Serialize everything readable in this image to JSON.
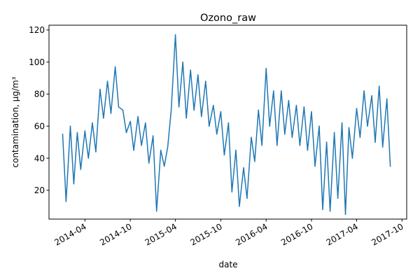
{
  "chart_data": {
    "type": "line",
    "title": "Ozono_raw",
    "xlabel": "date",
    "ylabel": "contamination, µg/m³",
    "x_ticks": [
      "2014-04",
      "2014-10",
      "2015-04",
      "2015-10",
      "2016-04",
      "2016-10",
      "2017-04",
      "2017-10"
    ],
    "y_ticks": [
      20,
      40,
      60,
      80,
      100,
      120
    ],
    "xlim": [
      "2013-11-07",
      "2017-10-20"
    ],
    "ylim": [
      2,
      123
    ],
    "grid": false,
    "legend": "none",
    "series": [
      {
        "color": "#1f77b4",
        "x": [
          "2014-01-01",
          "2014-01-15",
          "2014-02-01",
          "2014-02-15",
          "2014-03-01",
          "2014-03-15",
          "2014-04-01",
          "2014-04-15",
          "2014-05-01",
          "2014-05-15",
          "2014-06-01",
          "2014-06-15",
          "2014-07-01",
          "2014-07-15",
          "2014-08-01",
          "2014-08-15",
          "2014-09-01",
          "2014-09-15",
          "2014-10-01",
          "2014-10-15",
          "2014-11-01",
          "2014-11-15",
          "2014-12-01",
          "2014-12-15",
          "2015-01-01",
          "2015-01-15",
          "2015-02-01",
          "2015-02-15",
          "2015-03-01",
          "2015-03-15",
          "2015-04-01",
          "2015-04-15",
          "2015-05-01",
          "2015-05-15",
          "2015-06-01",
          "2015-06-15",
          "2015-07-01",
          "2015-07-15",
          "2015-08-01",
          "2015-08-15",
          "2015-09-01",
          "2015-09-15",
          "2015-10-01",
          "2015-10-15",
          "2015-11-01",
          "2015-11-15",
          "2015-12-01",
          "2015-12-15",
          "2016-01-01",
          "2016-01-15",
          "2016-02-01",
          "2016-02-15",
          "2016-03-01",
          "2016-03-15",
          "2016-04-01",
          "2016-04-15",
          "2016-05-01",
          "2016-05-15",
          "2016-06-01",
          "2016-06-15",
          "2016-07-01",
          "2016-07-15",
          "2016-08-01",
          "2016-08-15",
          "2016-09-01",
          "2016-09-15",
          "2016-10-01",
          "2016-10-15",
          "2016-11-01",
          "2016-11-15",
          "2016-12-01",
          "2016-12-15",
          "2017-01-01",
          "2017-01-15",
          "2017-02-01",
          "2017-02-15",
          "2017-03-01",
          "2017-03-15",
          "2017-04-01",
          "2017-04-15",
          "2017-05-01",
          "2017-05-15",
          "2017-06-01",
          "2017-06-15",
          "2017-07-01",
          "2017-07-15",
          "2017-08-01",
          "2017-08-15"
        ],
        "y": [
          55,
          13,
          60,
          24,
          56,
          33,
          57,
          40,
          62,
          44,
          83,
          65,
          88,
          68,
          97,
          72,
          70,
          56,
          63,
          45,
          66,
          48,
          62,
          37,
          54,
          7,
          45,
          35,
          47,
          70,
          117,
          72,
          100,
          65,
          95,
          70,
          92,
          66,
          88,
          60,
          73,
          55,
          69,
          42,
          62,
          19,
          45,
          10,
          34,
          15,
          53,
          38,
          70,
          48,
          96,
          60,
          82,
          48,
          82,
          55,
          76,
          53,
          73,
          48,
          72,
          45,
          69,
          35,
          60,
          8,
          50,
          7,
          56,
          15,
          62,
          5,
          59,
          40,
          71,
          53,
          82,
          60,
          79,
          50,
          85,
          47,
          77,
          35
        ]
      }
    ]
  }
}
